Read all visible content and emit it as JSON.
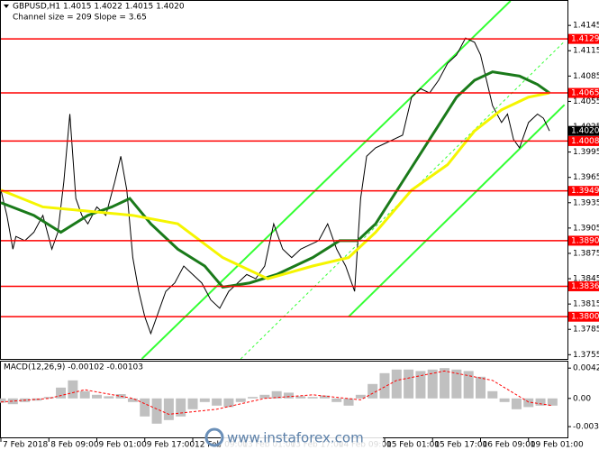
{
  "header": {
    "symbol_line": "GBPUSD,H1  1.4015 1.4022 1.4015 1.4020",
    "channel_line": "Channel size = 209 Slope = 3.65"
  },
  "watermark": "www.instaforex.com",
  "chart_data": [
    {
      "type": "line",
      "xlim": [
        0,
        189
      ],
      "ylim": [
        1.375,
        1.4174
      ],
      "xticks": [
        {
          "value": 0,
          "label": "7 Feb 2018"
        },
        {
          "value": 16,
          "label": "8 Feb 09:00"
        },
        {
          "value": 32,
          "label": "9 Feb 01:00"
        },
        {
          "value": 48,
          "label": "9 Feb 17:00"
        },
        {
          "value": 64,
          "label": "12 Feb 09:00"
        },
        {
          "value": 80,
          "label": "13 Feb 01:00"
        },
        {
          "value": 96,
          "label": "13 Feb 17:00"
        },
        {
          "value": 112,
          "label": "14 Feb 09:00"
        },
        {
          "value": 128,
          "label": "15 Feb 01:00"
        },
        {
          "value": 144,
          "label": "15 Feb 17:00"
        },
        {
          "value": 160,
          "label": "16 Feb 09:00"
        },
        {
          "value": 176,
          "label": "19 Feb 01:00"
        }
      ],
      "yticks": [
        1.4145,
        1.4115,
        1.4085,
        1.4055,
        1.4025,
        1.3995,
        1.3965,
        1.3935,
        1.3905,
        1.3875,
        1.3845,
        1.3815,
        1.3785,
        1.3755
      ],
      "series": [
        {
          "color": "#000000",
          "x": [
            0,
            2,
            4,
            5,
            8,
            11,
            14,
            17,
            19,
            21,
            23,
            25,
            27,
            29,
            32,
            35,
            38,
            40,
            42,
            44,
            46,
            48,
            50,
            53,
            55,
            58,
            61,
            64,
            67,
            70,
            73,
            76,
            79,
            82,
            85,
            88,
            91,
            94,
            97,
            100,
            103,
            106,
            109,
            112,
            115,
            118,
            120,
            122,
            125,
            128,
            131,
            134,
            137,
            140,
            143,
            146,
            149,
            152,
            155,
            158,
            160,
            162,
            164,
            167,
            169,
            171,
            173,
            176,
            179,
            181,
            183
          ],
          "values": [
            1.395,
            1.392,
            1.388,
            1.3895,
            1.389,
            1.39,
            1.392,
            1.388,
            1.39,
            1.396,
            1.404,
            1.394,
            1.392,
            1.391,
            1.393,
            1.392,
            1.396,
            1.399,
            1.395,
            1.387,
            1.383,
            1.38,
            1.378,
            1.381,
            1.383,
            1.384,
            1.386,
            1.385,
            1.384,
            1.382,
            1.381,
            1.383,
            1.384,
            1.385,
            1.3845,
            1.386,
            1.391,
            1.388,
            1.387,
            1.388,
            1.3885,
            1.389,
            1.391,
            1.388,
            1.386,
            1.383,
            1.394,
            1.399,
            1.4,
            1.4005,
            1.401,
            1.4015,
            1.406,
            1.407,
            1.4065,
            1.408,
            1.41,
            1.411,
            1.413,
            1.4125,
            1.411,
            1.408,
            1.405,
            1.403,
            1.404,
            1.401,
            1.4,
            1.403,
            1.404,
            1.4035,
            1.402
          ]
        },
        {
          "color": "#1a7a1a",
          "width": 3,
          "x": [
            0,
            11,
            20,
            29,
            37,
            43,
            50,
            59,
            68,
            74,
            83,
            92,
            104,
            113,
            119,
            125,
            134,
            143,
            152,
            158,
            164,
            173,
            179,
            183
          ],
          "values": [
            1.3935,
            1.392,
            1.39,
            1.392,
            1.393,
            1.394,
            1.391,
            1.388,
            1.386,
            1.3835,
            1.384,
            1.385,
            1.387,
            1.389,
            1.389,
            1.391,
            1.396,
            1.401,
            1.406,
            1.408,
            1.409,
            1.4085,
            1.4075,
            1.4065
          ]
        },
        {
          "color": "#f5f500",
          "width": 3,
          "x": [
            0,
            14,
            29,
            44,
            59,
            74,
            89,
            104,
            116,
            125,
            137,
            149,
            158,
            167,
            176,
            183
          ],
          "values": [
            1.395,
            1.393,
            1.3925,
            1.392,
            1.391,
            1.387,
            1.3845,
            1.386,
            1.387,
            1.39,
            1.395,
            1.398,
            1.402,
            1.4045,
            1.406,
            1.4065
          ]
        }
      ],
      "channel": {
        "color": "#33ff33",
        "lines": [
          {
            "x": [
              47,
              170
            ],
            "y": [
              1.375,
              1.4174
            ],
            "style": "solid"
          },
          {
            "x": [
              116,
              188
            ],
            "y": [
              1.38,
              1.4051
            ],
            "style": "solid"
          },
          {
            "x": [
              80,
              188
            ],
            "y": [
              1.375,
              1.4126
            ],
            "style": "dashed"
          }
        ]
      },
      "level_color": "#ff0000",
      "levels": [
        1.4129,
        1.4065,
        1.4008,
        1.3949,
        {
          "value": 1.389,
          "label": "1.3890"
        },
        1.3836,
        {
          "value": 1.38,
          "label": "1.3800"
        }
      ],
      "current": {
        "value": 1.402,
        "label": "1.4020"
      }
    },
    {
      "type": "macd",
      "title": "MACD(12,26,9) -0.00102 -0.00103",
      "xlim": [
        0,
        189
      ],
      "ylim": [
        -0.0054,
        0.0051
      ],
      "yticks": [
        0.0042,
        {
          "value": 0,
          "label": "0.00"
        },
        -0.00391
      ],
      "color": "#c0c0c0",
      "signal_color": "#ff0000",
      "x": [
        0,
        4,
        8,
        12,
        16,
        20,
        24,
        28,
        32,
        36,
        40,
        44,
        48,
        52,
        56,
        60,
        64,
        68,
        72,
        76,
        80,
        84,
        88,
        92,
        96,
        100,
        104,
        108,
        112,
        116,
        120,
        124,
        128,
        132,
        136,
        140,
        144,
        148,
        152,
        156,
        160,
        164,
        168,
        172,
        176,
        180,
        184
      ],
      "values": [
        -0.0006,
        -0.0008,
        -0.0005,
        -0.0003,
        0.0002,
        0.0015,
        0.0025,
        0.001,
        0.0005,
        0.0003,
        0.0006,
        -0.0005,
        -0.0025,
        -0.0035,
        -0.003,
        -0.0025,
        -0.0015,
        -0.0005,
        -0.001,
        -0.0012,
        -0.0005,
        0.0002,
        0.0005,
        0.001,
        0.0008,
        0.0003,
        0.0002,
        0.0004,
        -0.0005,
        -0.001,
        0.0005,
        0.002,
        0.0035,
        0.004,
        0.004,
        0.0038,
        0.004,
        0.0042,
        0.004,
        0.0038,
        0.003,
        0.001,
        -0.0005,
        -0.0015,
        -0.0012,
        -0.001,
        -0.001
      ],
      "signal_x": [
        0,
        16,
        28,
        44,
        56,
        72,
        88,
        104,
        120,
        132,
        148,
        164,
        176,
        184
      ],
      "signal": [
        -0.0005,
        0,
        0.0012,
        0,
        -0.0022,
        -0.0015,
        0,
        0.0005,
        -0.0002,
        0.0025,
        0.0038,
        0.0025,
        -0.0005,
        -0.001
      ]
    }
  ]
}
